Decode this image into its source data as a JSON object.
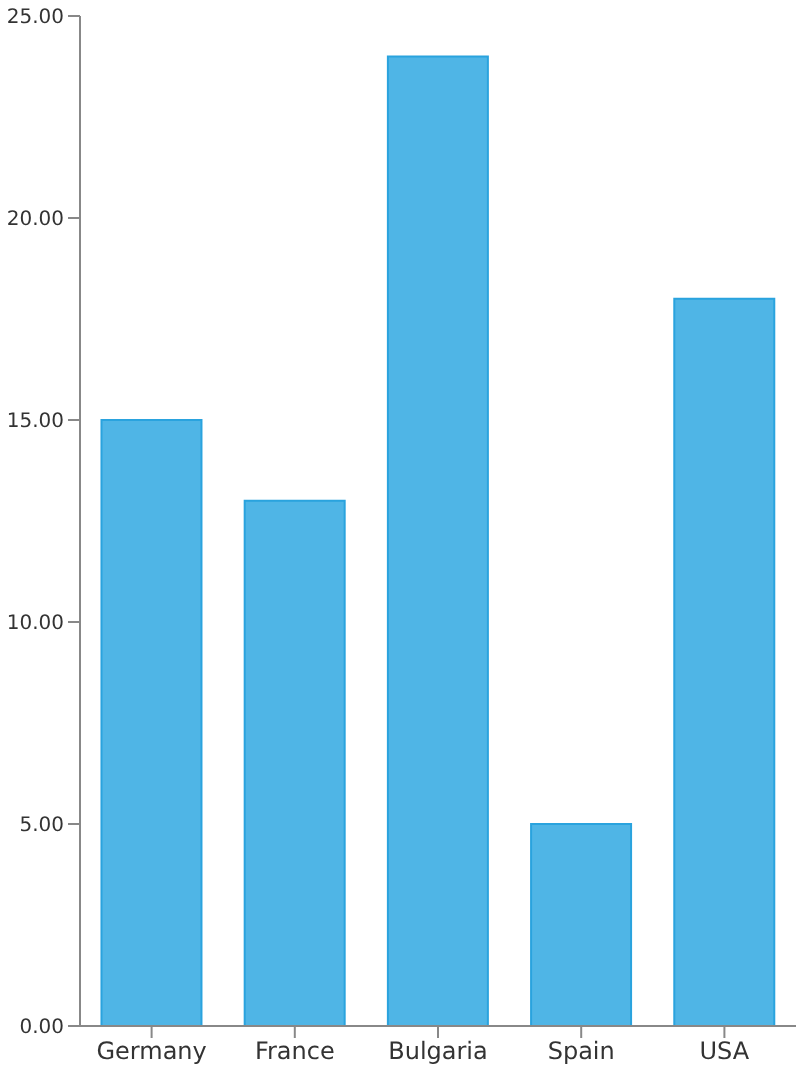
{
  "chart_data": {
    "type": "bar",
    "categories": [
      "Germany",
      "France",
      "Bulgaria",
      "Spain",
      "USA"
    ],
    "values": [
      15,
      13,
      24,
      5,
      18
    ],
    "color": "#4fb5e6",
    "ylim": [
      0,
      25
    ],
    "yticks": [
      {
        "value": 0,
        "label": "0.00"
      },
      {
        "value": 5,
        "label": "5.00"
      },
      {
        "value": 10,
        "label": "10.00"
      },
      {
        "value": 15,
        "label": "15.00"
      },
      {
        "value": 20,
        "label": "20.00"
      },
      {
        "value": 25,
        "label": "25.00"
      }
    ],
    "grid": false,
    "legend": false
  }
}
